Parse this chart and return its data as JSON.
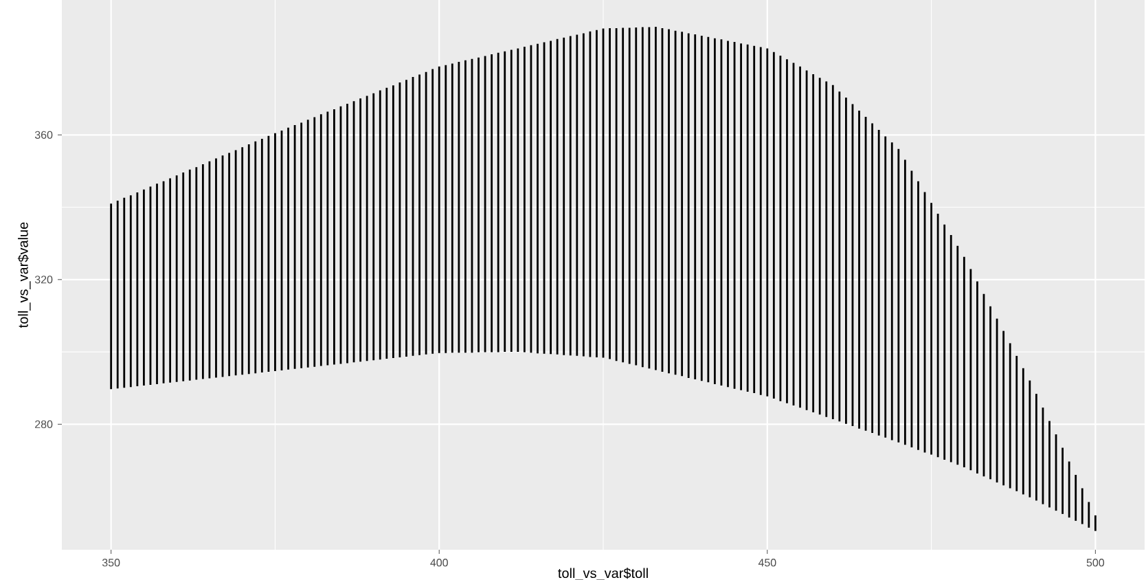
{
  "chart_data": {
    "type": "bar",
    "xlabel": "toll_vs_var$toll",
    "ylabel": "toll_vs_var$value",
    "xlim": [
      342.5,
      507.5
    ],
    "ylim": [
      245.3,
      397.3
    ],
    "xticks": [
      350,
      400,
      450,
      500
    ],
    "yticks": [
      280,
      320,
      360
    ],
    "grid": true,
    "color": "#000000",
    "x": [
      350,
      351,
      352,
      353,
      354,
      355,
      356,
      357,
      358,
      359,
      360,
      361,
      362,
      363,
      364,
      365,
      366,
      367,
      368,
      369,
      370,
      371,
      372,
      373,
      374,
      375,
      376,
      377,
      378,
      379,
      380,
      381,
      382,
      383,
      384,
      385,
      386,
      387,
      388,
      389,
      390,
      391,
      392,
      393,
      394,
      395,
      396,
      397,
      398,
      399,
      400,
      401,
      402,
      403,
      404,
      405,
      406,
      407,
      408,
      409,
      410,
      411,
      412,
      413,
      414,
      415,
      416,
      417,
      418,
      419,
      420,
      421,
      422,
      423,
      424,
      425,
      426,
      427,
      428,
      429,
      430,
      431,
      432,
      433,
      434,
      435,
      436,
      437,
      438,
      439,
      440,
      441,
      442,
      443,
      444,
      445,
      446,
      447,
      448,
      449,
      450,
      451,
      452,
      453,
      454,
      455,
      456,
      457,
      458,
      459,
      460,
      461,
      462,
      463,
      464,
      465,
      466,
      467,
      468,
      469,
      470,
      471,
      472,
      473,
      474,
      475,
      476,
      477,
      478,
      479,
      480,
      481,
      482,
      483,
      484,
      485,
      486,
      487,
      488,
      489,
      490,
      491,
      492,
      493,
      494,
      495,
      496,
      497,
      498,
      499,
      500
    ],
    "base": [
      289.7,
      289.9,
      290.1,
      290.3,
      290.5,
      290.7,
      290.9,
      291.1,
      291.3,
      291.5,
      291.7,
      291.9,
      292.1,
      292.3,
      292.5,
      292.7,
      292.9,
      293.1,
      293.3,
      293.5,
      293.7,
      293.9,
      294.1,
      294.3,
      294.5,
      294.7,
      294.9,
      295.1,
      295.3,
      295.5,
      295.7,
      295.9,
      296.1,
      296.3,
      296.5,
      296.7,
      296.9,
      297.1,
      297.3,
      297.5,
      297.7,
      297.9,
      298.1,
      298.3,
      298.5,
      298.7,
      298.9,
      299.1,
      299.3,
      299.5,
      299.7,
      299.7,
      299.8,
      299.8,
      299.8,
      299.8,
      299.9,
      299.9,
      299.9,
      299.9,
      300.0,
      300.0,
      300.0,
      299.9,
      299.8,
      299.6,
      299.5,
      299.4,
      299.3,
      299.1,
      299.0,
      298.9,
      298.8,
      298.6,
      298.5,
      298.4,
      298.0,
      297.5,
      297.1,
      296.7,
      296.3,
      295.8,
      295.4,
      295.0,
      294.5,
      294.1,
      293.7,
      293.3,
      292.8,
      292.4,
      292.0,
      291.6,
      291.1,
      290.7,
      290.3,
      289.8,
      289.4,
      289.0,
      288.6,
      288.1,
      287.7,
      287.1,
      286.4,
      285.8,
      285.2,
      284.6,
      283.9,
      283.3,
      282.7,
      282.0,
      281.4,
      280.8,
      280.1,
      279.5,
      278.8,
      278.2,
      277.6,
      276.9,
      276.3,
      275.6,
      275.0,
      274.3,
      273.6,
      272.9,
      272.2,
      271.6,
      270.9,
      270.2,
      269.5,
      268.8,
      268.1,
      267.3,
      266.4,
      265.6,
      264.8,
      263.9,
      263.1,
      262.3,
      261.5,
      260.6,
      259.8,
      258.9,
      257.9,
      257.0,
      256.1,
      255.2,
      254.2,
      253.3,
      252.4,
      251.4,
      250.5
    ],
    "values": [
      51.3,
      51.9,
      52.5,
      53.0,
      53.6,
      54.2,
      54.8,
      55.4,
      55.9,
      56.5,
      57.1,
      57.7,
      58.3,
      58.8,
      59.4,
      60.0,
      60.6,
      61.2,
      61.7,
      62.3,
      62.9,
      63.5,
      64.1,
      64.6,
      65.2,
      65.8,
      66.3,
      66.9,
      67.4,
      67.9,
      68.5,
      69.0,
      69.6,
      70.1,
      70.6,
      71.2,
      71.7,
      72.2,
      72.8,
      73.3,
      73.8,
      74.4,
      74.9,
      75.4,
      76.0,
      76.5,
      77.1,
      77.6,
      78.1,
      78.7,
      79.2,
      79.6,
      79.9,
      80.4,
      80.8,
      81.2,
      81.5,
      81.9,
      82.4,
      82.8,
      83.1,
      83.5,
      83.9,
      84.5,
      85.0,
      85.6,
      86.1,
      86.6,
      87.2,
      87.8,
      88.3,
      88.8,
      89.3,
      90.0,
      90.5,
      91.0,
      91.5,
      92.0,
      92.5,
      92.9,
      93.4,
      94.0,
      94.4,
      94.9,
      95.0,
      95.1,
      95.1,
      95.2,
      95.3,
      95.4,
      95.4,
      95.5,
      95.6,
      95.7,
      95.7,
      95.9,
      95.9,
      96.0,
      96.0,
      96.2,
      96.2,
      95.8,
      95.5,
      95.1,
      94.7,
      94.3,
      93.9,
      93.5,
      93.1,
      92.8,
      92.4,
      91.2,
      90.2,
      89.0,
      87.9,
      86.8,
      85.6,
      84.5,
      83.3,
      82.3,
      81.1,
      78.8,
      76.5,
      74.3,
      72.0,
      69.6,
      67.3,
      65.0,
      62.8,
      60.5,
      58.2,
      55.6,
      53.1,
      50.4,
      47.8,
      45.3,
      42.7,
      40.1,
      37.4,
      34.9,
      32.3,
      29.5,
      26.7,
      23.9,
      21.1,
      18.3,
      15.5,
      12.7,
      9.9,
      7.1,
      4.3
    ]
  }
}
